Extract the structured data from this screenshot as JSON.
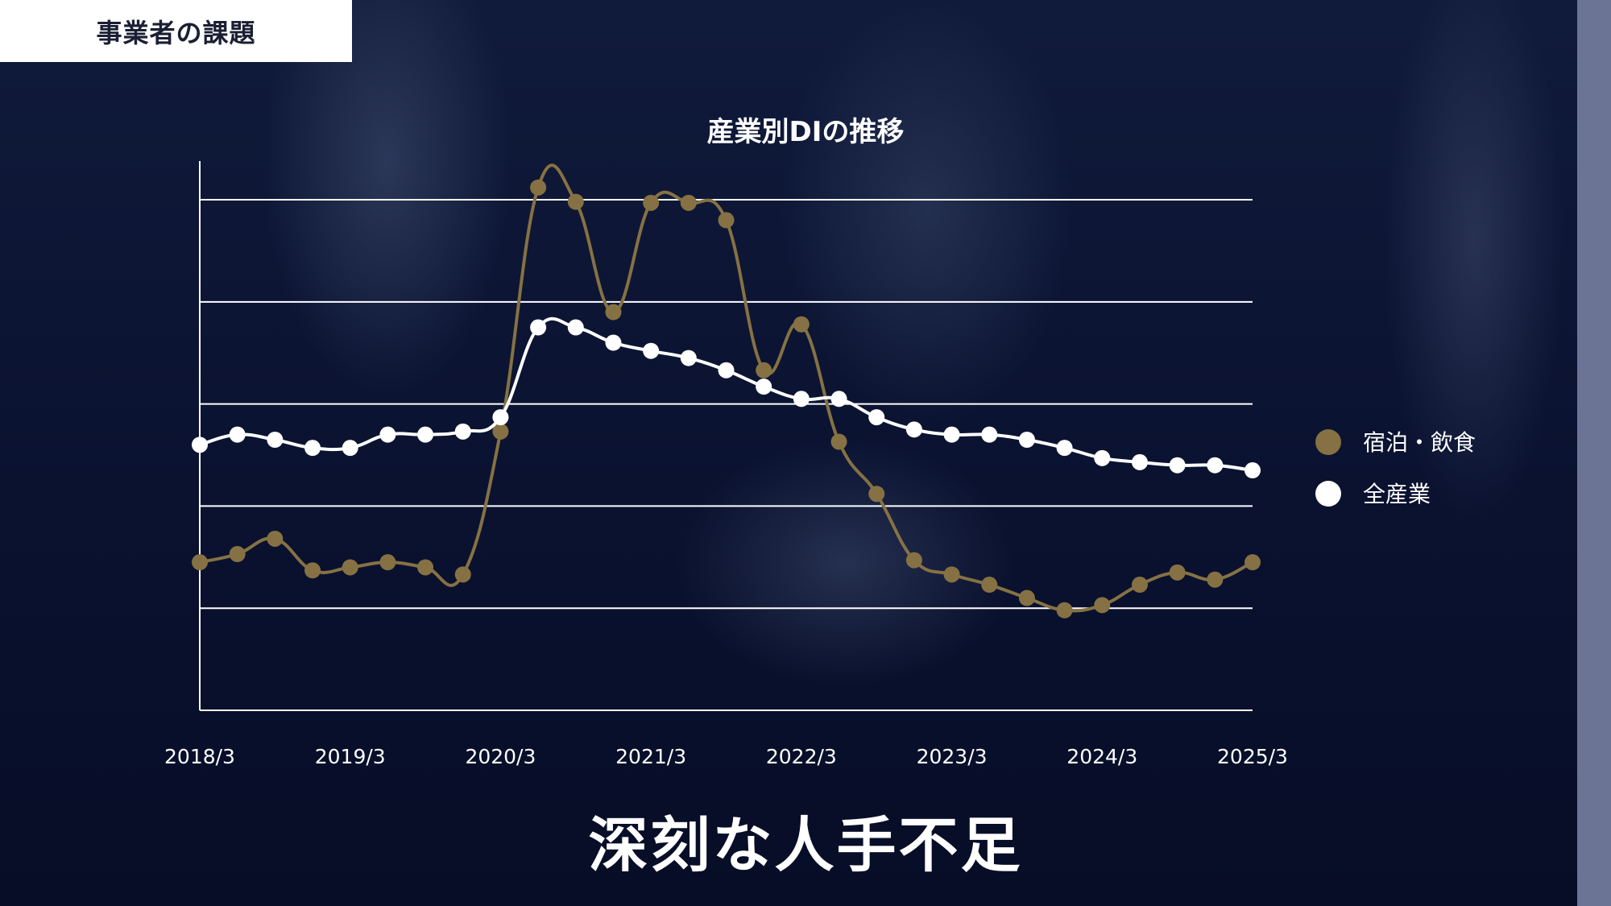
{
  "header": {
    "tag": "事業者の課題"
  },
  "headline": "深刻な人手不足",
  "colors": {
    "accent": "#857143",
    "white": "#ffffff",
    "background": "#0b1430"
  },
  "chart_data": {
    "type": "line",
    "title": "産業別DIの推移",
    "xlabel": "",
    "ylabel": "",
    "grid": true,
    "legend_position": "right",
    "tick_labels": [
      "2018/3",
      "2019/3",
      "2020/3",
      "2021/3",
      "2022/3",
      "2023/3",
      "2024/3",
      "2025/3"
    ],
    "y_gridlines": [
      0,
      1,
      2,
      3,
      4,
      5
    ],
    "ylim": [
      0,
      5.3
    ],
    "series": [
      {
        "name": "宿泊・飲食",
        "color": "#857143",
        "values": [
          1.45,
          1.53,
          1.68,
          1.37,
          1.4,
          1.45,
          1.4,
          1.33,
          2.73,
          5.12,
          4.98,
          3.9,
          4.97,
          4.97,
          4.8,
          3.33,
          3.78,
          2.63,
          2.12,
          1.47,
          1.33,
          1.23,
          1.1,
          0.98,
          1.03,
          1.23,
          1.35,
          1.28,
          1.45
        ]
      },
      {
        "name": "全産業",
        "color": "#ffffff",
        "values": [
          2.6,
          2.7,
          2.65,
          2.57,
          2.57,
          2.7,
          2.7,
          2.73,
          2.87,
          3.75,
          3.75,
          3.6,
          3.52,
          3.45,
          3.33,
          3.17,
          3.05,
          3.05,
          2.87,
          2.75,
          2.7,
          2.7,
          2.65,
          2.57,
          2.47,
          2.43,
          2.4,
          2.4,
          2.35
        ]
      }
    ]
  }
}
